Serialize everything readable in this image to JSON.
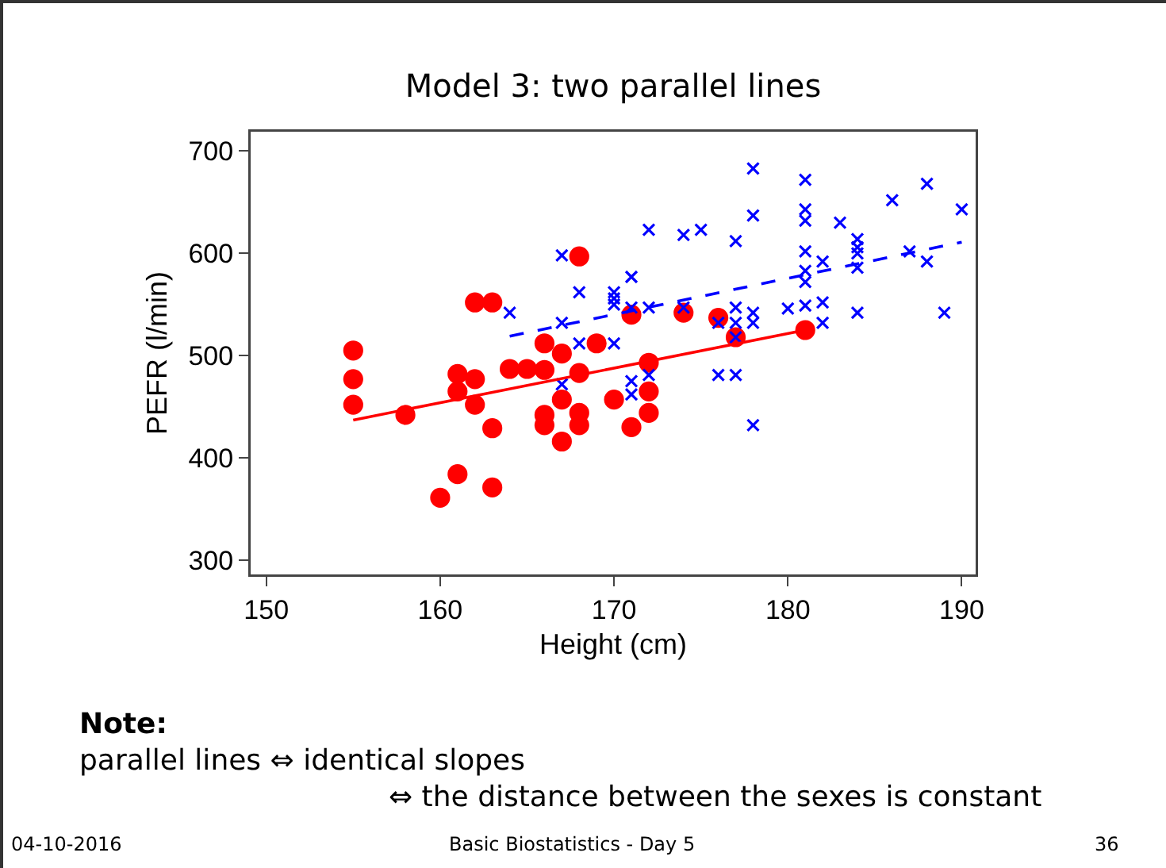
{
  "chart_data": {
    "type": "scatter",
    "title": "Model 3: two parallel lines",
    "xlabel": "Height (cm)",
    "ylabel": "PEFR (l/min)",
    "xlim": [
      149.1,
      190.8
    ],
    "xticks": [
      150,
      160,
      170,
      180,
      190
    ],
    "ylim": [
      286,
      719
    ],
    "yticks": [
      300,
      400,
      500,
      600,
      700
    ],
    "grid": false,
    "series": [
      {
        "marker": "circle",
        "color": "#ff0000",
        "x": [
          155,
          155,
          155,
          158,
          160,
          161,
          161,
          161,
          162,
          162,
          162,
          163,
          163,
          163,
          164,
          165,
          166,
          166,
          166,
          166,
          167,
          167,
          167,
          168,
          168,
          168,
          168,
          169,
          170,
          171,
          171,
          172,
          172,
          172,
          174,
          176,
          177,
          181
        ],
        "values": [
          505,
          477,
          452,
          442,
          361,
          482,
          465,
          384,
          552,
          477,
          452,
          552,
          429,
          371,
          487,
          487,
          512,
          486,
          442,
          432,
          502,
          457,
          416,
          597,
          483,
          444,
          432,
          512,
          457,
          540,
          430,
          493,
          465,
          444,
          542,
          537,
          518,
          525
        ]
      },
      {
        "marker": "cross",
        "color": "#0000ff",
        "x": [
          164,
          167,
          167,
          167,
          168,
          168,
          170,
          170,
          170,
          170,
          171,
          171,
          171,
          171,
          172,
          172,
          172,
          174,
          175,
          174,
          176,
          176,
          177,
          177,
          177,
          177,
          177,
          178,
          178,
          178,
          178,
          178,
          180,
          181,
          181,
          181,
          181,
          181,
          181,
          181,
          182,
          182,
          182,
          183,
          184,
          184,
          184,
          184,
          184,
          186,
          187,
          188,
          188,
          189,
          190
        ],
        "values": [
          542,
          598,
          532,
          472,
          562,
          512,
          562,
          556,
          550,
          512,
          577,
          547,
          475,
          462,
          623,
          547,
          481,
          618,
          623,
          547,
          532,
          481,
          612,
          547,
          532,
          518,
          481,
          683,
          637,
          542,
          532,
          432,
          546,
          672,
          643,
          632,
          602,
          583,
          572,
          549,
          592,
          552,
          532,
          630,
          614,
          606,
          600,
          586,
          542,
          652,
          602,
          668,
          592,
          542,
          643
        ]
      },
      {
        "type": "line",
        "line_style": "solid",
        "color": "#ff0000",
        "x": [
          155,
          181
        ],
        "values": [
          437,
          525
        ]
      },
      {
        "type": "line",
        "line_style": "dashed",
        "color": "#0000ff",
        "x": [
          164,
          190
        ],
        "values": [
          519,
          611
        ]
      }
    ],
    "annotations": [
      "Note:",
      "parallel lines ⇔ identical slopes",
      "⇔ the distance between the sexes is constant",
      "04-10-2016",
      "Basic Biostatistics - Day 5",
      "36"
    ]
  }
}
